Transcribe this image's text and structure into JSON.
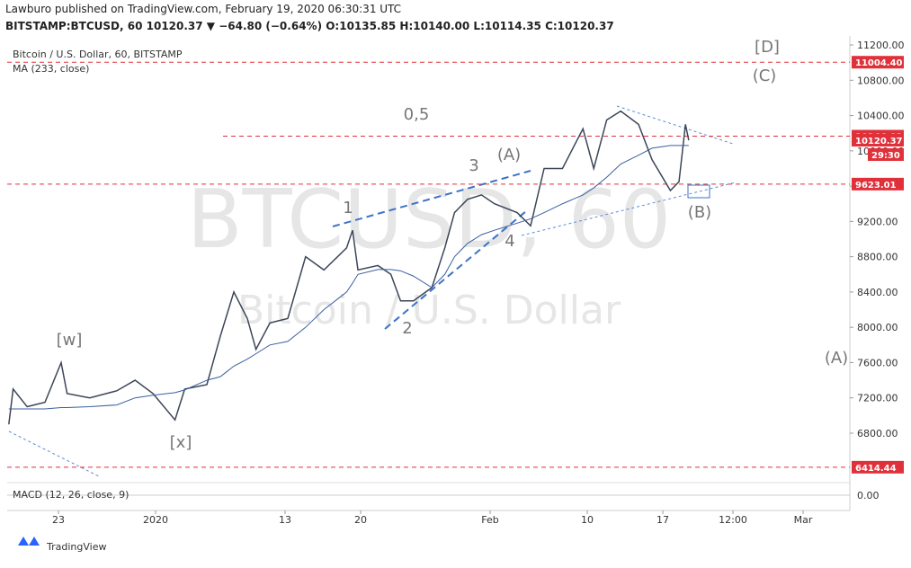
{
  "header": {
    "publisher": "Lawburo published on TradingView.com, February 19, 2020 06:30:31 UTC",
    "quote": "BITSTAMP:BTCUSD, 60  10120.37 ▼ −64.80 (−0.64%) O:10135.85 H:10140.00 L:10114.35 C:10120.37"
  },
  "watermark": {
    "symbol": "BTCUSD, 60",
    "description": "Bitcoin / U.S. Dollar"
  },
  "footer": "TradingView",
  "chart_data": {
    "type": "line",
    "x": [
      -4.6,
      -4.2,
      -2.9,
      -1.25,
      0.25,
      0.8,
      2.9,
      5.4,
      7.1,
      8.75,
      10.8,
      11.7,
      13.75,
      15,
      16.25,
      17.5,
      18.3,
      19.6,
      21.25,
      22.9,
      24.6,
      26.7,
      27.25,
      27.75,
      29.6,
      30.8,
      31.7,
      32.9,
      34.6,
      35.8,
      36.7,
      37.9,
      39.2,
      40.4,
      42.5,
      43.75,
      45,
      46.7,
      48.6,
      49.6,
      50.8,
      52.1,
      53.75,
      55,
      56.7,
      57.5,
      58.1,
      58.4
    ],
    "series": [
      {
        "name": "Bitcoin / U.S. Dollar, 60, BITSTAMP",
        "color": "#3c4658",
        "values": [
          6900,
          7300,
          7100,
          7150,
          7600,
          7250,
          7200,
          7280,
          7400,
          7250,
          6950,
          7300,
          7350,
          7900,
          8400,
          8100,
          7750,
          8050,
          8100,
          8800,
          8650,
          8900,
          9100,
          8650,
          8700,
          8600,
          8300,
          8300,
          8450,
          8900,
          9300,
          9450,
          9500,
          9400,
          9300,
          9150,
          9800,
          9800,
          10250,
          9800,
          10350,
          10450,
          10300,
          9900,
          9550,
          9650,
          10300,
          10120
        ]
      },
      {
        "name": "MA (233, close)",
        "color": "#3a5fa0",
        "values": [
          7075,
          7075,
          7075,
          7075,
          7090,
          7090,
          7100,
          7120,
          7200,
          7230,
          7260,
          7290,
          7400,
          7440,
          7560,
          7640,
          7700,
          7800,
          7840,
          8000,
          8200,
          8400,
          8500,
          8600,
          8655,
          8655,
          8640,
          8580,
          8450,
          8600,
          8800,
          8950,
          9050,
          9100,
          9180,
          9230,
          9300,
          9400,
          9500,
          9580,
          9700,
          9850,
          9950,
          10030,
          10060,
          10060,
          10060,
          10060
        ]
      }
    ],
    "xlim": [
      -4.75,
      73.33
    ],
    "xticks": [
      {
        "value": 0,
        "label": "23"
      },
      {
        "value": 9,
        "label": "2020"
      },
      {
        "value": 21,
        "label": "13"
      },
      {
        "value": 28,
        "label": "20"
      },
      {
        "value": 40,
        "label": "Feb"
      },
      {
        "value": 49,
        "label": "10"
      },
      {
        "value": 56,
        "label": "17"
      },
      {
        "value": 62.5,
        "label": "12:00"
      },
      {
        "value": 69,
        "label": "Mar"
      }
    ],
    "ylim": [
      6260,
      11302
    ],
    "yticks": [
      {
        "value": 6800,
        "label": "6800.00"
      },
      {
        "value": 7200,
        "label": "7200.00"
      },
      {
        "value": 7600,
        "label": "7600.00"
      },
      {
        "value": 8000,
        "label": "8000.00"
      },
      {
        "value": 8400,
        "label": "8400.00"
      },
      {
        "value": 8800,
        "label": "8800.00"
      },
      {
        "value": 9200,
        "label": "9200.00"
      },
      {
        "value": 9600,
        "label": "9600.00"
      },
      {
        "value": 10000,
        "label": "10000.00"
      },
      {
        "value": 10400,
        "label": "10400.00"
      },
      {
        "value": 10800,
        "label": "10800.00"
      },
      {
        "value": 11200,
        "label": "11200.00"
      }
    ],
    "levels": [
      {
        "value": 11004.4,
        "label": "11004.40"
      },
      10166.03,
      9623.01,
      6414.44
    ],
    "last_price": 10120.37,
    "countdown": "29:30",
    "annotations": [
      "[D]",
      "(C)",
      "0,5",
      "(A)",
      "3",
      "1",
      "4",
      "2",
      "(B)",
      "[w]",
      "[x]",
      "(A)"
    ],
    "macd": {
      "label": "MACD (12, 26, close, 9)",
      "zero": {
        "value": 0,
        "label": "0.00"
      }
    }
  }
}
